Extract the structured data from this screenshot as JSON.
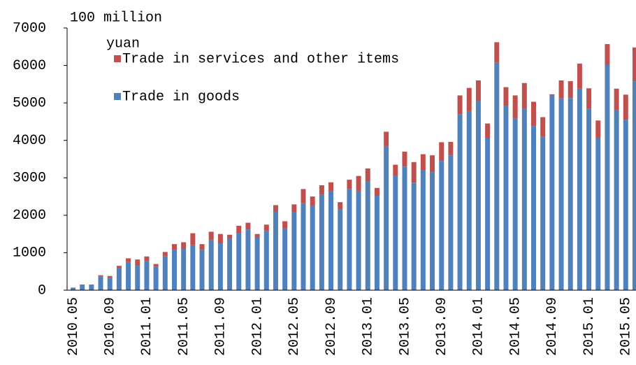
{
  "chart_data": {
    "type": "stacked_bar",
    "y_label": [
      "100 million",
      "yuan"
    ],
    "categories": [
      "2010.05",
      null,
      null,
      null,
      "2010.09",
      null,
      null,
      null,
      "2011.01",
      null,
      null,
      null,
      "2011.05",
      null,
      null,
      null,
      "2011.09",
      null,
      null,
      null,
      "2012.01",
      null,
      null,
      null,
      "2012.05",
      null,
      null,
      null,
      "2012.09",
      null,
      null,
      null,
      "2013.01",
      null,
      null,
      null,
      "2013.05",
      null,
      null,
      null,
      "2013.09",
      null,
      null,
      null,
      "2014.01",
      null,
      null,
      null,
      "2014.05",
      null,
      null,
      null,
      "2014.09",
      null,
      null,
      null,
      "2015.01",
      null,
      null,
      null,
      "2015.05",
      null
    ],
    "series": [
      {
        "name": "Trade in goods",
        "color": "#4f81bd",
        "values": [
          60,
          130,
          130,
          360,
          330,
          580,
          750,
          650,
          780,
          620,
          900,
          1080,
          1100,
          1200,
          1080,
          1330,
          1250,
          1380,
          1530,
          1620,
          1400,
          1580,
          2100,
          1650,
          2080,
          2320,
          2250,
          2550,
          2650,
          2150,
          2700,
          2650,
          2900,
          2520,
          3830,
          3050,
          3300,
          2870,
          3200,
          3150,
          3450,
          3600,
          4700,
          4780,
          5050,
          4060,
          6080,
          4920,
          4580,
          4840,
          4380,
          4100,
          5200,
          5120,
          5130,
          5380,
          4850,
          4070,
          6020,
          4800,
          4550,
          5580
        ]
      },
      {
        "name": "Trade in services and other items",
        "color": "#c0504d",
        "values": [
          10,
          20,
          20,
          40,
          50,
          70,
          100,
          170,
          120,
          80,
          120,
          150,
          180,
          320,
          150,
          230,
          250,
          100,
          190,
          180,
          100,
          170,
          170,
          190,
          210,
          380,
          250,
          250,
          230,
          200,
          250,
          400,
          350,
          210,
          400,
          300,
          400,
          550,
          430,
          450,
          500,
          360,
          500,
          620,
          550,
          390,
          540,
          500,
          620,
          690,
          650,
          520,
          30,
          480,
          450,
          670,
          540,
          460,
          550,
          580,
          670,
          900
        ]
      }
    ],
    "ylim": [
      0,
      7000
    ],
    "yticks": [
      0,
      1000,
      2000,
      3000,
      4000,
      5000,
      6000,
      7000
    ]
  }
}
